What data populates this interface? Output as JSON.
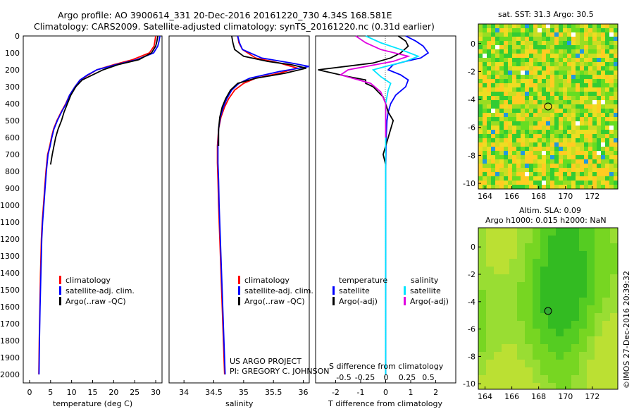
{
  "header": {
    "line1": "Argo profile: AO 3900614_331 20-Dec-2016 20161220_730 4.34S 168.581E",
    "line2": "Climatology: CARS2009. Satellite-adjusted climatology: synTS_20161220.nc (0.31d earlier)"
  },
  "depth_ticks": [
    "0",
    "100",
    "200",
    "300",
    "400",
    "500",
    "600",
    "700",
    "800",
    "900",
    "1000",
    "1100",
    "1200",
    "1300",
    "1400",
    "1500",
    "1600",
    "1700",
    "1800",
    "1900",
    "2000"
  ],
  "colors": {
    "climatology": "#ff0000",
    "satellite": "#0000ff",
    "argo": "#000000",
    "cyan": "#00e5ff",
    "magenta": "#e000e0"
  },
  "temp_panel": {
    "xlabel": "temperature (deg C)",
    "xticks": [
      "0",
      "5",
      "10",
      "15",
      "20",
      "25",
      "30"
    ],
    "legend": [
      "climatology",
      "satellite-adj. clim.",
      "Argo(..raw -QC)"
    ]
  },
  "sal_panel": {
    "xlabel": "salinity",
    "xticks": [
      "34",
      "34.5",
      "35",
      "35.5",
      "36"
    ],
    "legend": [
      "climatology",
      "satellite-adj. clim.",
      "Argo(..raw -QC)"
    ],
    "credit1": "US ARGO PROJECT",
    "credit2": "PI: GREGORY C. JOHNSON"
  },
  "diff_panel": {
    "xlabel": "T difference from climatology",
    "xticks": [
      "-2",
      "-1",
      "0",
      "1",
      "2"
    ],
    "s_label": "S difference from climatology",
    "s_ticks": [
      "-0.5",
      "-0.25",
      "0",
      "0.25",
      "0.5"
    ],
    "legend_t_title": "temperature",
    "legend_s_title": "salinity",
    "legend_t": [
      "satellite",
      "Argo(-adj)"
    ],
    "legend_s": [
      "satellite",
      "Argo(-adj)"
    ]
  },
  "sst_map": {
    "title": "sat. SST: 31.3 Argo: 30.5",
    "yticks": [
      "0",
      "-2",
      "-4",
      "-6",
      "-8",
      "-10"
    ],
    "xticks": [
      "164",
      "166",
      "168",
      "170",
      "172"
    ]
  },
  "sla_map": {
    "title1": "Altim. SLA: 0.09",
    "title2": "Argo h1000: 0.015 h2000: NaN",
    "yticks": [
      "0",
      "-2",
      "-4",
      "-6",
      "-8",
      "-10"
    ],
    "xticks": [
      "164",
      "166",
      "168",
      "170",
      "172"
    ]
  },
  "footer": {
    "stamp": "©IMOS 27-Dec-2016 20:39:32"
  },
  "chart_data": [
    {
      "type": "line",
      "xlabel": "temperature (deg C)",
      "ylabel": "",
      "xlim": [
        -1.5,
        31.5
      ],
      "ylim": [
        2050,
        0
      ],
      "series": [
        {
          "name": "climatology",
          "color": "#ff0000",
          "x": [
            30,
            29.8,
            29.6,
            28.5,
            24.5,
            20,
            16,
            14,
            12,
            10.8,
            9.5,
            8.6,
            7.5,
            6.5,
            5.7,
            5.2,
            4.8,
            4.3,
            3.9,
            3.6,
            3.3,
            3.0,
            2.8,
            2.6,
            2.45,
            2.3,
            2.2
          ],
          "y": [
            0,
            30,
            60,
            100,
            140,
            170,
            200,
            230,
            260,
            300,
            350,
            400,
            450,
            500,
            550,
            600,
            650,
            700,
            800,
            900,
            1000,
            1100,
            1200,
            1400,
            1600,
            1800,
            2000
          ]
        },
        {
          "name": "satellite-adj. clim.",
          "color": "#0000ff",
          "x": [
            31,
            30.8,
            30.5,
            29.5,
            25.5,
            20.5,
            16,
            13.8,
            12,
            10.8,
            9.5,
            8.7,
            7.6,
            6.6,
            5.8,
            5.3,
            4.9,
            4.4,
            4.0,
            3.7,
            3.4,
            3.1,
            2.9,
            2.7,
            2.5,
            2.35,
            2.25
          ],
          "y": [
            0,
            30,
            60,
            100,
            140,
            170,
            200,
            230,
            260,
            300,
            350,
            400,
            450,
            500,
            550,
            600,
            650,
            700,
            800,
            900,
            1000,
            1100,
            1200,
            1400,
            1600,
            1800,
            2000
          ]
        },
        {
          "name": "Argo(..raw -QC)",
          "color": "#000000",
          "x": [
            30.5,
            30.3,
            30,
            29,
            26,
            21,
            17.5,
            15,
            12.5,
            11,
            9.8,
            9,
            8.2,
            7.6,
            6.8,
            6.2,
            5.8,
            5.4,
            5.0
          ],
          "y": [
            0,
            30,
            60,
            100,
            140,
            170,
            200,
            230,
            260,
            300,
            350,
            400,
            450,
            500,
            550,
            600,
            650,
            700,
            760
          ]
        }
      ]
    },
    {
      "type": "line",
      "xlabel": "salinity",
      "ylabel": "",
      "xlim": [
        33.75,
        36.1
      ],
      "ylim": [
        2050,
        0
      ],
      "series": [
        {
          "name": "climatology",
          "color": "#ff0000",
          "x": [
            34.9,
            34.92,
            34.98,
            35.2,
            35.6,
            35.9,
            35.6,
            35.2,
            35.0,
            34.85,
            34.75,
            34.68,
            34.62,
            34.58,
            34.56,
            34.56,
            34.57,
            34.58,
            34.6,
            34.62,
            34.64,
            34.66,
            34.68
          ],
          "y": [
            0,
            40,
            80,
            130,
            160,
            190,
            220,
            250,
            280,
            320,
            370,
            420,
            480,
            550,
            650,
            750,
            850,
            1000,
            1200,
            1400,
            1600,
            1800,
            2000
          ]
        },
        {
          "name": "satellite-adj. clim.",
          "color": "#0000ff",
          "x": [
            34.9,
            34.93,
            34.98,
            35.3,
            35.8,
            36.1,
            35.6,
            35.1,
            34.92,
            34.8,
            34.72,
            34.66,
            34.61,
            34.58,
            34.57,
            34.57,
            34.58,
            34.59,
            34.61,
            34.63,
            34.65,
            34.67,
            34.69
          ],
          "y": [
            0,
            40,
            80,
            130,
            160,
            180,
            210,
            250,
            280,
            320,
            370,
            420,
            480,
            550,
            650,
            750,
            850,
            1000,
            1200,
            1400,
            1600,
            1800,
            2000
          ]
        },
        {
          "name": "Argo(..raw -QC)",
          "color": "#000000",
          "x": [
            34.8,
            34.82,
            34.85,
            35.0,
            35.4,
            35.8,
            36.05,
            35.7,
            35.2,
            34.9,
            34.78,
            34.7,
            34.64,
            34.6,
            34.58,
            34.58
          ],
          "y": [
            0,
            40,
            80,
            120,
            150,
            170,
            190,
            220,
            250,
            280,
            320,
            370,
            420,
            480,
            550,
            650
          ]
        }
      ]
    },
    {
      "type": "line",
      "xlabel": "T difference from climatology",
      "ylabel": "",
      "xlim": [
        -2.8,
        2.8
      ],
      "ylim": [
        2050,
        0
      ],
      "series": [
        {
          "name": "T satellite",
          "color": "#0000ff",
          "x": [
            0.8,
            1.2,
            1.5,
            1.7,
            1.4,
            0.8,
            0.3,
            0.1,
            0.6,
            0.9,
            0.8,
            0.4,
            0.2,
            0.1,
            0.05,
            0.02,
            0.0,
            0.0,
            0.0,
            0.0
          ],
          "y": [
            0,
            30,
            60,
            100,
            130,
            150,
            170,
            200,
            230,
            260,
            300,
            350,
            400,
            450,
            500,
            600,
            800,
            1000,
            1500,
            2000
          ]
        },
        {
          "name": "T Argo(-adj)",
          "color": "#000000",
          "x": [
            0.5,
            0.8,
            0.9,
            0.6,
            0.2,
            -0.5,
            -2.7,
            -1.5,
            -0.8,
            -0.8,
            -0.5,
            -0.3,
            -0.1,
            0.0,
            0.1,
            0.3,
            0.2,
            0.1,
            -0.1,
            0.0
          ],
          "y": [
            0,
            30,
            60,
            100,
            130,
            160,
            200,
            240,
            260,
            280,
            300,
            330,
            360,
            400,
            450,
            500,
            550,
            600,
            700,
            760
          ]
        },
        {
          "name": "S satellite",
          "color": "#00e5ff",
          "x": [
            -0.8,
            -0.2,
            0.6,
            1.3,
            0.8,
            0.0,
            -0.5,
            -0.2,
            0.2,
            0.1,
            0.0,
            0.0,
            0.0,
            0.0,
            0.0
          ],
          "y": [
            0,
            40,
            80,
            120,
            150,
            180,
            200,
            240,
            280,
            320,
            400,
            600,
            1000,
            1500,
            2000
          ]
        },
        {
          "name": "S Argo(-adj)",
          "color": "#e000e0",
          "x": [
            -1.2,
            -0.8,
            -0.2,
            0.9,
            0.3,
            -1.5,
            -1.8,
            -0.6,
            -0.2,
            0.0,
            0.0
          ],
          "y": [
            0,
            40,
            80,
            120,
            150,
            200,
            230,
            280,
            330,
            400,
            600
          ]
        }
      ]
    }
  ]
}
